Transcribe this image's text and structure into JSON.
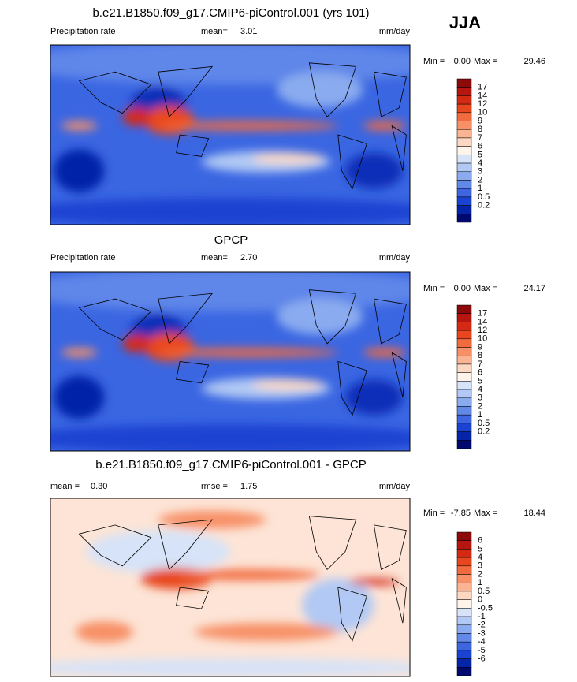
{
  "header": {
    "season": "JJA"
  },
  "panels": [
    {
      "title": "b.e21.B1850.f09_g17.CMIP6-piControl.001 (yrs 101)",
      "row": [
        "Precipitation rate",
        "mean=",
        "3.01"
      ],
      "units": "mm/day",
      "minmax": [
        "Min =",
        "0.00",
        "Max =",
        "29.46"
      ],
      "colorbar": {
        "labels": [
          "17",
          "14",
          "12",
          "10",
          "9",
          "8",
          "7",
          "6",
          "5",
          "4",
          "3",
          "2",
          "1",
          "0.5",
          "0.2"
        ],
        "colors": [
          "#8c0a0a",
          "#b5160f",
          "#d42a14",
          "#e8461f",
          "#f26b3e",
          "#f79066",
          "#fab493",
          "#fcd8c2",
          "#fff4ea",
          "#d6e3f8",
          "#b1c9f4",
          "#8aabef",
          "#6389e8",
          "#3d66e0",
          "#1a43d2",
          "#0524a8",
          "#000a6e"
        ]
      }
    },
    {
      "title": "GPCP",
      "row": [
        "Precipitation rate",
        "mean=",
        "2.70"
      ],
      "units": "mm/day",
      "minmax": [
        "Min =",
        "0.00",
        "Max =",
        "24.17"
      ],
      "colorbar": {
        "labels": [
          "17",
          "14",
          "12",
          "10",
          "9",
          "8",
          "7",
          "6",
          "5",
          "4",
          "3",
          "2",
          "1",
          "0.5",
          "0.2"
        ],
        "colors": [
          "#8c0a0a",
          "#b5160f",
          "#d42a14",
          "#e8461f",
          "#f26b3e",
          "#f79066",
          "#fab493",
          "#fcd8c2",
          "#fff4ea",
          "#d6e3f8",
          "#b1c9f4",
          "#8aabef",
          "#6389e8",
          "#3d66e0",
          "#1a43d2",
          "#0524a8",
          "#000a6e"
        ]
      }
    },
    {
      "title": "b.e21.B1850.f09_g17.CMIP6-piControl.001 - GPCP",
      "row": [
        "mean =",
        "0.30",
        "rmse =",
        "1.75"
      ],
      "units": "mm/day",
      "minmax": [
        "Min =",
        "-7.85",
        "Max =",
        "18.44"
      ],
      "colorbar": {
        "labels": [
          "6",
          "5",
          "4",
          "3",
          "2",
          "1",
          "0.5",
          "0",
          "-0.5",
          "-1",
          "-2",
          "-3",
          "-4",
          "-5",
          "-6"
        ],
        "colors": [
          "#8c0a0a",
          "#b5160f",
          "#d42a14",
          "#e8461f",
          "#f26b3e",
          "#f79066",
          "#fab493",
          "#fcd8c2",
          "#fff4ea",
          "#d6e3f8",
          "#b1c9f4",
          "#8aabef",
          "#6389e8",
          "#3d66e0",
          "#1a43d2",
          "#0524a8",
          "#000a6e"
        ]
      }
    }
  ]
}
